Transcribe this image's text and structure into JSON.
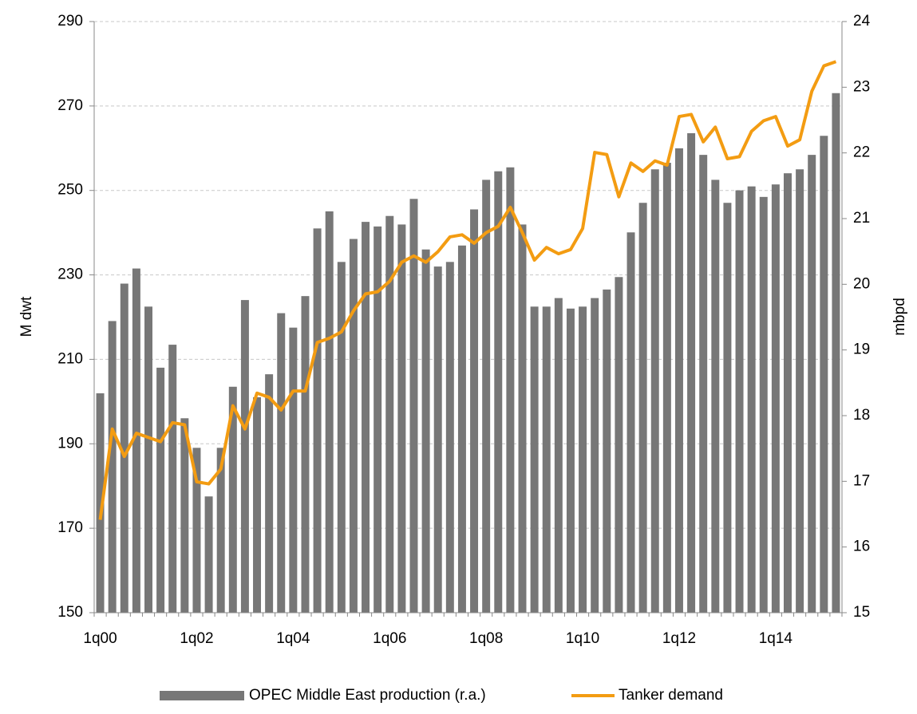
{
  "chart_data": {
    "type": "bar_line",
    "y_label": "M dwt",
    "y2_label": "mbpd",
    "categories": [
      "1q00",
      null,
      null,
      null,
      null,
      null,
      null,
      null,
      "1q02",
      null,
      null,
      null,
      null,
      null,
      null,
      null,
      "1q04",
      null,
      null,
      null,
      null,
      null,
      null,
      null,
      "1q06",
      null,
      null,
      null,
      null,
      null,
      null,
      null,
      "1q08",
      null,
      null,
      null,
      null,
      null,
      null,
      null,
      "1q10",
      null,
      null,
      null,
      null,
      null,
      null,
      null,
      "1q12",
      null,
      null,
      null,
      null,
      null,
      null,
      null,
      "1q14",
      null,
      null,
      null,
      null,
      null
    ],
    "series": [
      {
        "name": "OPEC Middle East production (r.a.)",
        "type": "bar",
        "axis": "y2",
        "color": "#777777",
        "values": [
          18.34,
          19.44,
          20.01,
          20.24,
          19.66,
          18.73,
          19.08,
          17.96,
          17.51,
          16.77,
          17.51,
          18.44,
          19.76,
          18.28,
          18.63,
          19.56,
          19.34,
          19.82,
          20.85,
          21.11,
          20.34,
          20.69,
          20.95,
          20.88,
          21.04,
          20.91,
          21.3,
          20.53,
          20.27,
          20.34,
          20.59,
          21.14,
          21.59,
          21.72,
          21.78,
          20.91,
          19.66,
          19.66,
          19.79,
          19.63,
          19.66,
          19.79,
          19.92,
          20.11,
          20.79,
          21.24,
          21.75,
          21.85,
          22.07,
          22.3,
          21.97,
          21.59,
          21.24,
          21.43,
          21.49,
          21.33,
          21.52,
          21.69,
          21.75,
          21.97,
          22.26,
          22.91
        ]
      },
      {
        "name": "Tanker demand",
        "type": "line",
        "axis": "y",
        "color": "#f39c12",
        "values": [
          172,
          193.5,
          187,
          192.5,
          191.5,
          190.5,
          195,
          194.5,
          181,
          180.5,
          184,
          199,
          193.5,
          202,
          201,
          198,
          202.5,
          202.5,
          214,
          215,
          216.5,
          221.5,
          225.5,
          226,
          228.5,
          233,
          234.5,
          233,
          235.5,
          239,
          239.5,
          237.5,
          240,
          241.5,
          246,
          240,
          233.5,
          236.5,
          235,
          236,
          241,
          259,
          258.5,
          248.5,
          256.5,
          254.5,
          257,
          256,
          267.5,
          268,
          261.5,
          265,
          257.5,
          258,
          264,
          266.5,
          267.5,
          260.5,
          262,
          273.5,
          279.5,
          280.5
        ]
      }
    ],
    "ylim": [
      150,
      290
    ],
    "yticks": [
      150,
      170,
      190,
      210,
      230,
      250,
      270,
      290
    ],
    "y2lim": [
      15,
      24
    ],
    "y2ticks": [
      15,
      16,
      17,
      18,
      19,
      20,
      21,
      22,
      23,
      24
    ],
    "grid": true,
    "legend": "bottom"
  }
}
